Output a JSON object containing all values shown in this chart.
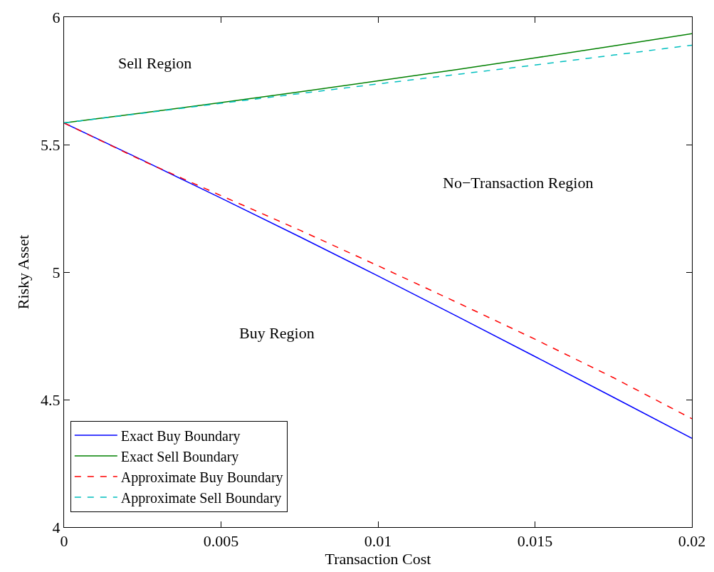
{
  "chart_data": {
    "type": "line",
    "xlabel": "Transaction Cost",
    "ylabel": "Risky Asset",
    "x": [
      0,
      0.0025,
      0.005,
      0.0075,
      0.01,
      0.0125,
      0.015,
      0.0175,
      0.02
    ],
    "series": [
      {
        "name": "Exact Buy Boundary",
        "color": "#0000ff",
        "line_style": "solid",
        "values": [
          5.585,
          5.439,
          5.29,
          5.139,
          4.985,
          4.828,
          4.669,
          4.509,
          4.348
        ]
      },
      {
        "name": "Exact Sell Boundary",
        "color": "#008000",
        "line_style": "solid",
        "values": [
          5.585,
          5.624,
          5.665,
          5.707,
          5.75,
          5.794,
          5.84,
          5.887,
          5.935
        ]
      },
      {
        "name": "Approximate Buy Boundary",
        "color": "#ff0000",
        "line_style": "dashed",
        "values": [
          5.585,
          5.437,
          5.3,
          5.165,
          5.025,
          4.882,
          4.737,
          4.586,
          4.425
        ]
      },
      {
        "name": "Approximate Sell Boundary",
        "color": "#00bfbf",
        "line_style": "dashed",
        "values": [
          5.585,
          5.623,
          5.662,
          5.7,
          5.738,
          5.775,
          5.812,
          5.851,
          5.89
        ]
      }
    ],
    "annotations": [
      "Sell Region",
      "No−Transaction Region",
      "Buy Region"
    ],
    "xlim": [
      0,
      0.02
    ],
    "xticks": [
      0,
      0.005,
      0.01,
      0.015,
      0.02
    ],
    "ylim": [
      4,
      6
    ],
    "yticks": [
      4,
      4.5,
      5,
      5.5,
      6
    ],
    "legend": "bottom left",
    "marker": "none"
  }
}
